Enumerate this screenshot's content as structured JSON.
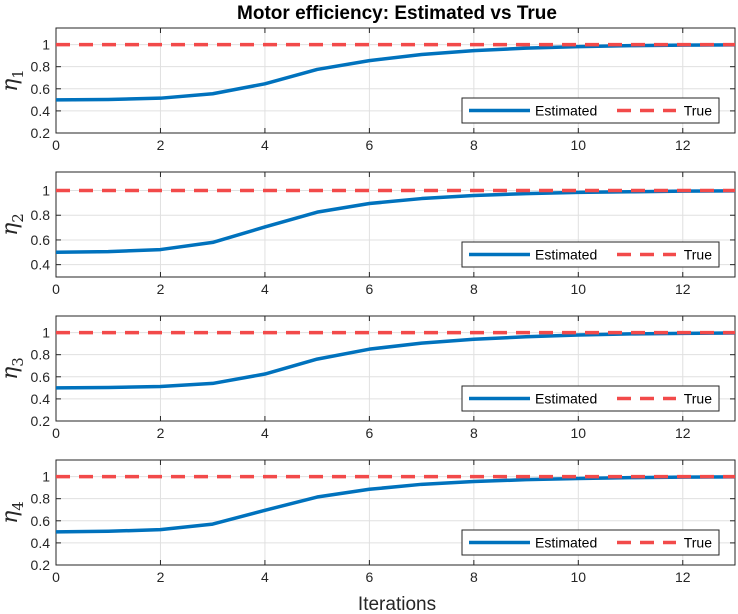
{
  "figure": {
    "title": "Motor efficiency: Estimated vs True",
    "xlabel": "Iterations"
  },
  "colors": {
    "estimated": "#0072BD",
    "true": "#F24A4A",
    "grid": "#E0E0E0",
    "axis": "#262626"
  },
  "chart_data": [
    {
      "type": "line",
      "ylabel_symbol": "η",
      "ylabel_subscript": "1",
      "xlim": [
        0,
        13
      ],
      "ylim": [
        0.2,
        1.15
      ],
      "xticks": [
        0,
        2,
        4,
        6,
        8,
        10,
        12
      ],
      "yticks": [
        0.2,
        0.4,
        0.6,
        0.8,
        1
      ],
      "ytick_labels": [
        "0.2",
        "0.4",
        "0.6",
        "0.8",
        "1"
      ],
      "grid": true,
      "legend_position": "bottom-right",
      "series": [
        {
          "name": "Estimated",
          "style": "solid",
          "x": [
            0,
            1,
            2,
            3,
            4,
            5,
            6,
            7,
            8,
            9,
            10,
            11,
            12,
            13
          ],
          "y": [
            0.5,
            0.503,
            0.515,
            0.555,
            0.645,
            0.775,
            0.855,
            0.91,
            0.945,
            0.968,
            0.982,
            0.99,
            0.995,
            0.997
          ]
        },
        {
          "name": "True",
          "style": "dashed",
          "x": [
            0,
            13
          ],
          "y": [
            1.0,
            1.0
          ]
        }
      ]
    },
    {
      "type": "line",
      "ylabel_symbol": "η",
      "ylabel_subscript": "2",
      "xlim": [
        0,
        13
      ],
      "ylim": [
        0.3,
        1.15
      ],
      "xticks": [
        0,
        2,
        4,
        6,
        8,
        10,
        12
      ],
      "yticks": [
        0.4,
        0.6,
        0.8,
        1
      ],
      "ytick_labels": [
        "0.4",
        "0.6",
        "0.8",
        "1"
      ],
      "grid": true,
      "legend_position": "bottom-right",
      "series": [
        {
          "name": "Estimated",
          "style": "solid",
          "x": [
            0,
            1,
            2,
            3,
            4,
            5,
            6,
            7,
            8,
            9,
            10,
            11,
            12,
            13
          ],
          "y": [
            0.5,
            0.505,
            0.522,
            0.58,
            0.705,
            0.825,
            0.895,
            0.935,
            0.96,
            0.975,
            0.985,
            0.99,
            0.995,
            0.997
          ]
        },
        {
          "name": "True",
          "style": "dashed",
          "x": [
            0,
            13
          ],
          "y": [
            1.0,
            1.0
          ]
        }
      ]
    },
    {
      "type": "line",
      "ylabel_symbol": "η",
      "ylabel_subscript": "3",
      "xlim": [
        0,
        13
      ],
      "ylim": [
        0.2,
        1.15
      ],
      "xticks": [
        0,
        2,
        4,
        6,
        8,
        10,
        12
      ],
      "yticks": [
        0.2,
        0.4,
        0.6,
        0.8,
        1
      ],
      "ytick_labels": [
        "0.2",
        "0.4",
        "0.6",
        "0.8",
        "1"
      ],
      "grid": true,
      "legend_position": "bottom-right",
      "series": [
        {
          "name": "Estimated",
          "style": "solid",
          "x": [
            0,
            1,
            2,
            3,
            4,
            5,
            6,
            7,
            8,
            9,
            10,
            11,
            12,
            13
          ],
          "y": [
            0.5,
            0.503,
            0.512,
            0.54,
            0.625,
            0.76,
            0.85,
            0.905,
            0.94,
            0.962,
            0.978,
            0.988,
            0.993,
            0.996
          ]
        },
        {
          "name": "True",
          "style": "dashed",
          "x": [
            0,
            13
          ],
          "y": [
            1.0,
            1.0
          ]
        }
      ]
    },
    {
      "type": "line",
      "ylabel_symbol": "η",
      "ylabel_subscript": "4",
      "xlim": [
        0,
        13
      ],
      "ylim": [
        0.2,
        1.15
      ],
      "xticks": [
        0,
        2,
        4,
        6,
        8,
        10,
        12
      ],
      "yticks": [
        0.2,
        0.4,
        0.6,
        0.8,
        1
      ],
      "ytick_labels": [
        "0.2",
        "0.4",
        "0.6",
        "0.8",
        "1"
      ],
      "grid": true,
      "legend_position": "bottom-right",
      "series": [
        {
          "name": "Estimated",
          "style": "solid",
          "x": [
            0,
            1,
            2,
            3,
            4,
            5,
            6,
            7,
            8,
            9,
            10,
            11,
            12,
            13
          ],
          "y": [
            0.5,
            0.505,
            0.52,
            0.57,
            0.695,
            0.815,
            0.885,
            0.93,
            0.955,
            0.972,
            0.983,
            0.99,
            0.995,
            0.997
          ]
        },
        {
          "name": "True",
          "style": "dashed",
          "x": [
            0,
            13
          ],
          "y": [
            1.0,
            1.0
          ]
        }
      ]
    }
  ]
}
